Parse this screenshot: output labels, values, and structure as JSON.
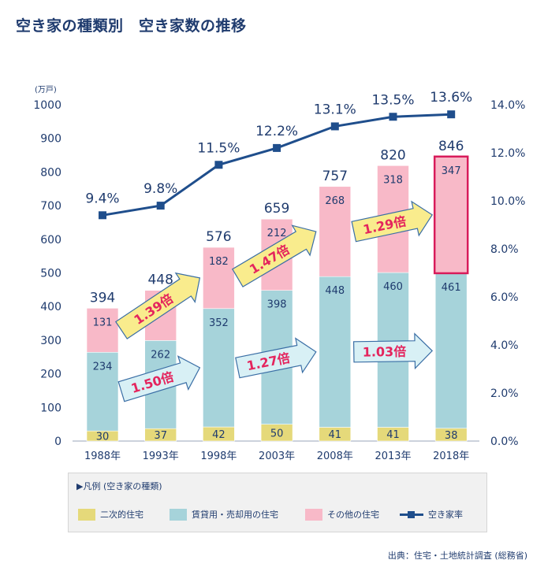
{
  "title": "空き家の種類別　空き家数の推移",
  "colors": {
    "secondary": "#e5d97a",
    "rental_sale": "#a6d3da",
    "other": "#f8b9c8",
    "rate_line": "#1f4e8c",
    "arrow_yellow": "#f9ec8d",
    "arrow_cyan": "#d8f0f5",
    "arrow_text": "#e4245d",
    "highlight_border": "#d81b5a"
  },
  "legend": {
    "heading": "▶凡例 (空き家の種類)",
    "items": [
      "二次的住宅",
      "賃貸用・売却用の住宅",
      "その他の住宅",
      "空き家率"
    ]
  },
  "source": "出典：住宅・土地統計調査 (総務省)",
  "chart_data": {
    "type": "bar",
    "stacked": true,
    "categories": [
      "1988年",
      "1993年",
      "1998年",
      "2003年",
      "2008年",
      "2013年",
      "2018年"
    ],
    "y_unit": "(万戸)",
    "ylim": [
      0,
      1000
    ],
    "y_ticks": [
      "0",
      "100",
      "200",
      "300",
      "400",
      "500",
      "600",
      "700",
      "800",
      "900",
      "1000"
    ],
    "y2lim": [
      0,
      14
    ],
    "y2_ticks": [
      "0.0%",
      "2.0%",
      "4.0%",
      "6.0%",
      "8.0%",
      "10.0%",
      "12.0%",
      "14.0%"
    ],
    "series": [
      {
        "name": "二次的住宅",
        "values": [
          30,
          37,
          42,
          50,
          41,
          41,
          38
        ]
      },
      {
        "name": "賃貸用・売却用の住宅",
        "values": [
          234,
          262,
          352,
          398,
          448,
          460,
          461
        ]
      },
      {
        "name": "その他の住宅",
        "values": [
          131,
          149,
          182,
          212,
          268,
          318,
          347
        ]
      }
    ],
    "totals": [
      "394",
      "448",
      "576",
      "659",
      "757",
      "820",
      "846"
    ],
    "line": {
      "name": "空き家率",
      "values": [
        9.4,
        9.8,
        11.5,
        12.2,
        13.1,
        13.5,
        13.6
      ],
      "labels": [
        "9.4%",
        "9.8%",
        "11.5%",
        "12.2%",
        "13.1%",
        "13.5%",
        "13.6%"
      ]
    },
    "annotations": [
      {
        "text": "1.50倍",
        "from": 0,
        "to": 2,
        "series": 1
      },
      {
        "text": "1.39倍",
        "from": 0,
        "to": 2,
        "series": 2
      },
      {
        "text": "1.27倍",
        "from": 2,
        "to": 4,
        "series": 1
      },
      {
        "text": "1.47倍",
        "from": 2,
        "to": 4,
        "series": 2
      },
      {
        "text": "1.03倍",
        "from": 4,
        "to": 6,
        "series": 1
      },
      {
        "text": "1.29倍",
        "from": 4,
        "to": 6,
        "series": 2
      }
    ],
    "highlight": {
      "category": "2018年",
      "series": "その他の住宅"
    }
  }
}
